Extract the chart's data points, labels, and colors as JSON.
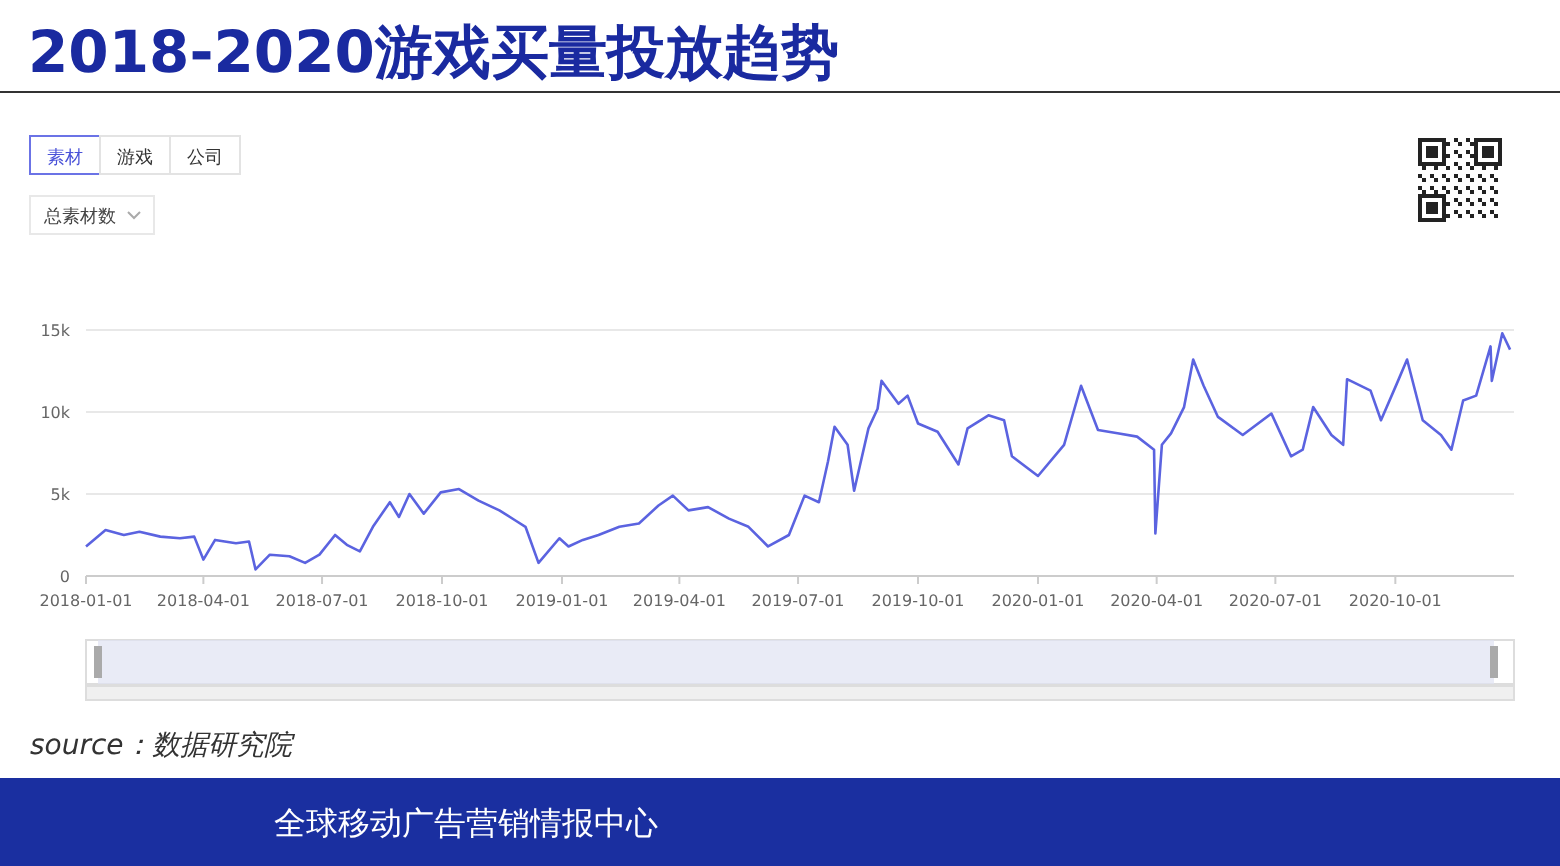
{
  "chart_data": {
    "type": "line",
    "title": "2018-2020游戏买量投放趋势",
    "annotations": [
      "素材",
      "游戏",
      "公司",
      "总素材数",
      "source：数据研究院",
      "全球移动广告营销情报中心"
    ],
    "x": [
      "2018-01-01",
      "2018-01-16",
      "2018-01-30",
      "2018-02-11",
      "2018-02-27",
      "2018-03-14",
      "2018-03-25",
      "2018-04-01",
      "2018-04-10",
      "2018-04-26",
      "2018-05-06",
      "2018-05-11",
      "2018-05-22",
      "2018-06-06",
      "2018-06-18",
      "2018-06-29",
      "2018-07-11",
      "2018-07-20",
      "2018-07-30",
      "2018-08-09",
      "2018-08-22",
      "2018-08-29",
      "2018-09-06",
      "2018-09-17",
      "2018-09-30",
      "2018-10-14",
      "2018-10-29",
      "2018-11-14",
      "2018-11-26",
      "2018-12-04",
      "2018-12-14",
      "2018-12-30",
      "2019-01-06",
      "2019-01-17",
      "2019-01-29",
      "2019-02-14",
      "2019-03-01",
      "2019-03-16",
      "2019-03-27",
      "2019-04-08",
      "2019-04-23",
      "2019-05-09",
      "2019-05-24",
      "2019-06-08",
      "2019-06-24",
      "2019-07-06",
      "2019-07-17",
      "2019-07-24",
      "2019-07-29",
      "2019-08-08",
      "2019-08-13",
      "2019-08-24",
      "2019-08-31",
      "2019-09-03",
      "2019-09-16",
      "2019-09-23",
      "2019-10-01",
      "2019-10-16",
      "2019-11-01",
      "2019-11-08",
      "2019-11-24",
      "2019-12-06",
      "2019-12-12",
      "2020-01-01",
      "2020-01-21",
      "2020-02-03",
      "2020-02-16",
      "2020-03-02",
      "2020-03-17",
      "2020-03-30",
      "2020-03-31",
      "2020-04-05",
      "2020-04-12",
      "2020-04-22",
      "2020-04-29",
      "2020-05-07",
      "2020-05-18",
      "2020-06-06",
      "2020-06-28",
      "2020-07-13",
      "2020-07-22",
      "2020-07-30",
      "2020-08-13",
      "2020-08-22",
      "2020-08-25",
      "2020-09-12",
      "2020-09-20",
      "2020-10-02",
      "2020-10-10",
      "2020-10-22",
      "2020-11-05",
      "2020-11-13",
      "2020-11-22",
      "2020-12-02",
      "2020-12-13",
      "2020-12-14",
      "2020-12-22",
      "2020-12-28"
    ],
    "series": [
      {
        "color": "#5b63e0",
        "values": [
          1800,
          2800,
          2500,
          2700,
          2400,
          2300,
          2400,
          1000,
          2200,
          2000,
          2100,
          400,
          1300,
          1200,
          800,
          1300,
          2500,
          1900,
          1500,
          3000,
          4500,
          3600,
          5000,
          3800,
          5100,
          5300,
          4600,
          4000,
          3400,
          3000,
          800,
          2300,
          1800,
          2200,
          2500,
          3000,
          3200,
          4300,
          4900,
          4000,
          4200,
          3500,
          3000,
          1800,
          2500,
          4900,
          4500,
          7000,
          9100,
          8000,
          5200,
          9000,
          10200,
          11900,
          10500,
          11000,
          9300,
          8800,
          6800,
          9000,
          9800,
          9500,
          7300,
          6100,
          8000,
          11600,
          8900,
          8700,
          8500,
          7700,
          2600,
          8000,
          8700,
          10300,
          13200,
          11600,
          9700,
          8600,
          9900,
          7300,
          7700,
          10300,
          8600,
          8000,
          12000,
          11300,
          9500,
          11700,
          13200,
          9500,
          8600,
          7700,
          10700,
          11000,
          14000,
          11900,
          14800,
          13800
        ]
      }
    ],
    "xlim": [
      "2018-01-01",
      "2020-12-31"
    ],
    "xticks": [
      "2018-01-01",
      "2018-04-01",
      "2018-07-01",
      "2018-10-01",
      "2019-01-01",
      "2019-04-01",
      "2019-07-01",
      "2019-10-01",
      "2020-01-01",
      "2020-04-01",
      "2020-07-01",
      "2020-10-01"
    ],
    "ylim": [
      0,
      15000
    ],
    "yticks": [
      0,
      {
        "value": 5000,
        "label": "5k"
      },
      {
        "value": 10000,
        "label": "10k"
      },
      {
        "value": 15000,
        "label": "15k"
      }
    ],
    "grid": "y",
    "marker": "none",
    "line_style": "solid"
  }
}
